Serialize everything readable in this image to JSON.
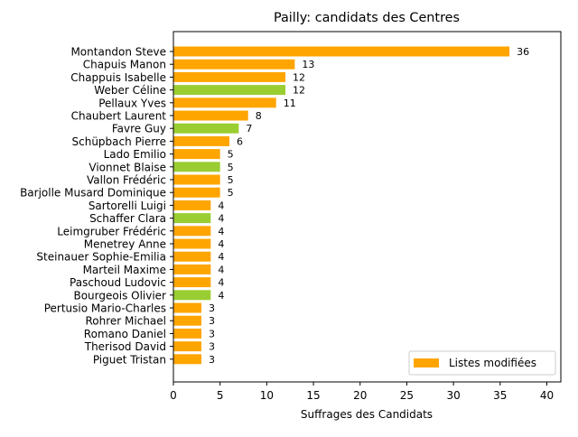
{
  "chart_data": {
    "type": "bar",
    "orientation": "horizontal",
    "title": "Pailly: candidats des Centres",
    "xlabel": "Suffrages des Candidats",
    "ylabel": "",
    "xlim": [
      0,
      41.5
    ],
    "xticks": [
      0,
      5,
      10,
      15,
      20,
      25,
      30,
      35,
      40
    ],
    "grid": false,
    "legend": {
      "placement": "lower-right",
      "entries": [
        {
          "label": "Listes modifiées",
          "color": "#ffa500"
        }
      ]
    },
    "colors": {
      "orange": "#ffa500",
      "green": "#9acd32"
    },
    "categories": [
      "Montandon Steve",
      "Chapuis Manon",
      "Chappuis Isabelle",
      "Weber Céline",
      "Pellaux Yves",
      "Chaubert Laurent",
      "Favre Guy",
      "Schüpbach Pierre",
      "Lado Emilio",
      "Vionnet Blaise",
      "Vallon Frédéric",
      "Barjolle Musard Dominique",
      "Sartorelli Luigi",
      "Schaffer Clara",
      "Leimgruber Frédéric",
      "Menetrey Anne",
      "Steinauer Sophie-Emilia",
      "Marteil Maxime",
      "Paschoud Ludovic",
      "Bourgeois Olivier",
      "Pertusio Mario-Charles",
      "Rohrer Michael",
      "Romano Daniel",
      "Therisod David",
      "Piguet Tristan"
    ],
    "values": [
      36,
      13,
      12,
      12,
      11,
      8,
      7,
      6,
      5,
      5,
      5,
      5,
      4,
      4,
      4,
      4,
      4,
      4,
      4,
      4,
      3,
      3,
      3,
      3,
      3
    ],
    "bar_colors": [
      "orange",
      "orange",
      "orange",
      "green",
      "orange",
      "orange",
      "green",
      "orange",
      "orange",
      "green",
      "orange",
      "orange",
      "orange",
      "green",
      "orange",
      "orange",
      "orange",
      "orange",
      "orange",
      "green",
      "orange",
      "orange",
      "orange",
      "orange",
      "orange"
    ]
  }
}
